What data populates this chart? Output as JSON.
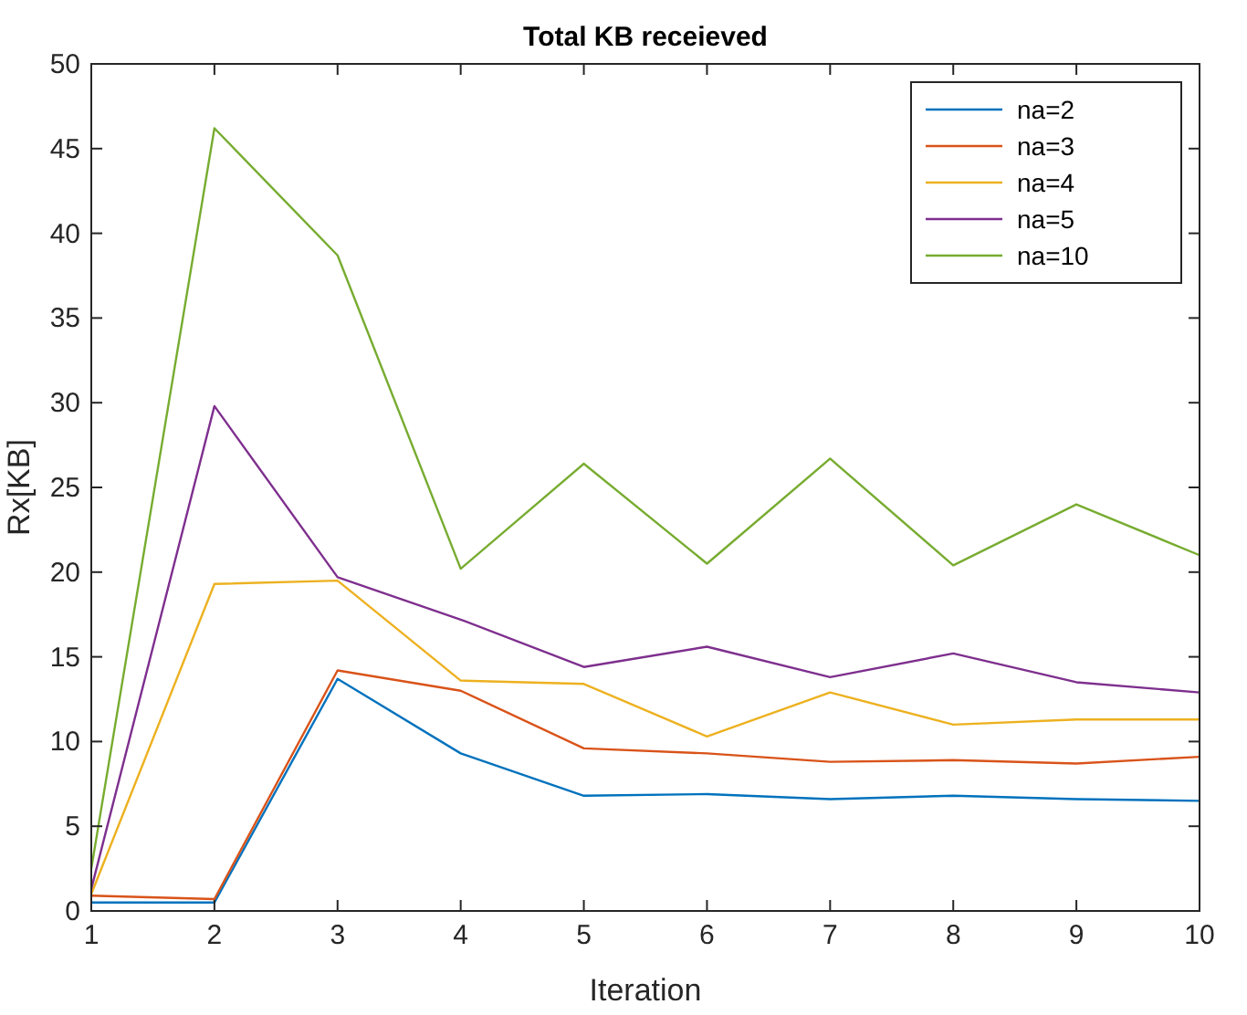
{
  "chart_data": {
    "type": "line",
    "title": "Total KB receieved",
    "xlabel": "Iteration",
    "ylabel": "Rx[KB]",
    "x": [
      1,
      2,
      3,
      4,
      5,
      6,
      7,
      8,
      9,
      10
    ],
    "xlim": [
      1,
      10
    ],
    "xticks": [
      1,
      2,
      3,
      4,
      5,
      6,
      7,
      8,
      9,
      10
    ],
    "ylim": [
      0,
      50
    ],
    "yticks": [
      0,
      5,
      10,
      15,
      20,
      25,
      30,
      35,
      40,
      45,
      50
    ],
    "grid": false,
    "legend": "top right",
    "marker": "none",
    "line_style": "solid",
    "series": [
      {
        "name": "na=2",
        "color": "#0072bd",
        "values": [
          0.5,
          0.5,
          13.7,
          9.3,
          6.8,
          6.9,
          6.6,
          6.8,
          6.6,
          6.5
        ]
      },
      {
        "name": "na=3",
        "color": "#d95319",
        "values": [
          0.9,
          0.7,
          14.2,
          13.0,
          9.6,
          9.3,
          8.8,
          8.9,
          8.7,
          9.1
        ]
      },
      {
        "name": "na=4",
        "color": "#edb120",
        "values": [
          1.0,
          19.3,
          19.5,
          13.6,
          13.4,
          10.3,
          12.9,
          11.0,
          11.3,
          11.3
        ]
      },
      {
        "name": "na=5",
        "color": "#7e2f8e",
        "values": [
          1.3,
          29.8,
          19.7,
          17.2,
          14.4,
          15.6,
          13.8,
          15.2,
          13.5,
          12.9
        ]
      },
      {
        "name": "na=10",
        "color": "#77ac30",
        "values": [
          2.5,
          46.2,
          38.7,
          20.2,
          26.4,
          20.5,
          26.7,
          20.4,
          24.0,
          21.0
        ]
      }
    ]
  }
}
